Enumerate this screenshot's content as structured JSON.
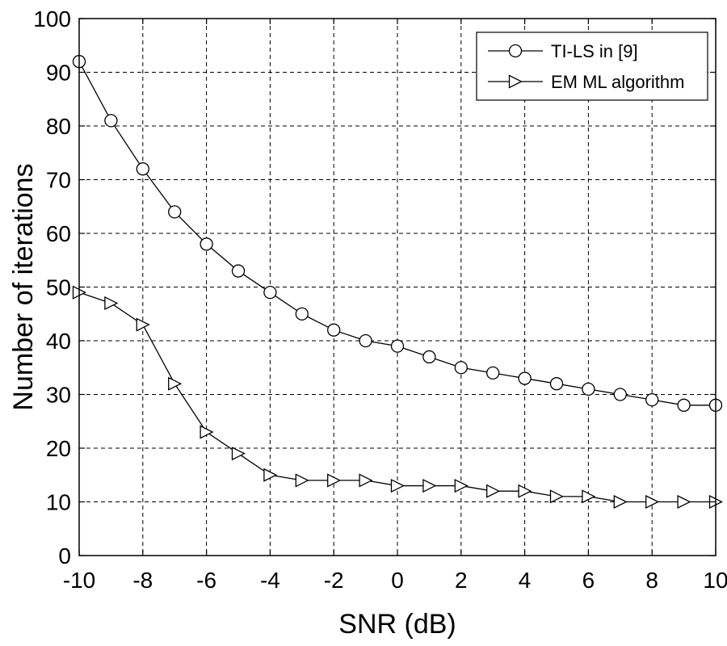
{
  "chart_data": {
    "type": "line",
    "title": "",
    "xlabel": "SNR (dB)",
    "ylabel": "Number of iterations",
    "xlim": [
      -10,
      10
    ],
    "ylim": [
      0,
      100
    ],
    "xticks": [
      -10,
      -8,
      -6,
      -4,
      -2,
      0,
      2,
      4,
      6,
      8,
      10
    ],
    "yticks": [
      0,
      10,
      20,
      30,
      40,
      50,
      60,
      70,
      80,
      90,
      100
    ],
    "grid": true,
    "legend_position": "top-right",
    "x": [
      -10,
      -9,
      -8,
      -7,
      -6,
      -5,
      -4,
      -3,
      -2,
      -1,
      0,
      1,
      2,
      3,
      4,
      5,
      6,
      7,
      8,
      9,
      10
    ],
    "series": [
      {
        "name": "TI-LS in [9]",
        "marker": "circle",
        "color": "#000000",
        "values": [
          92,
          81,
          72,
          64,
          58,
          53,
          49,
          45,
          42,
          40,
          39,
          37,
          35,
          34,
          33,
          32,
          31,
          30,
          29,
          28,
          28
        ]
      },
      {
        "name": "EM ML algorithm",
        "marker": "triangle-right",
        "color": "#000000",
        "values": [
          49,
          47,
          43,
          32,
          23,
          19,
          15,
          14,
          14,
          14,
          13,
          13,
          13,
          12,
          12,
          11,
          11,
          10,
          10,
          10,
          10
        ]
      }
    ]
  }
}
